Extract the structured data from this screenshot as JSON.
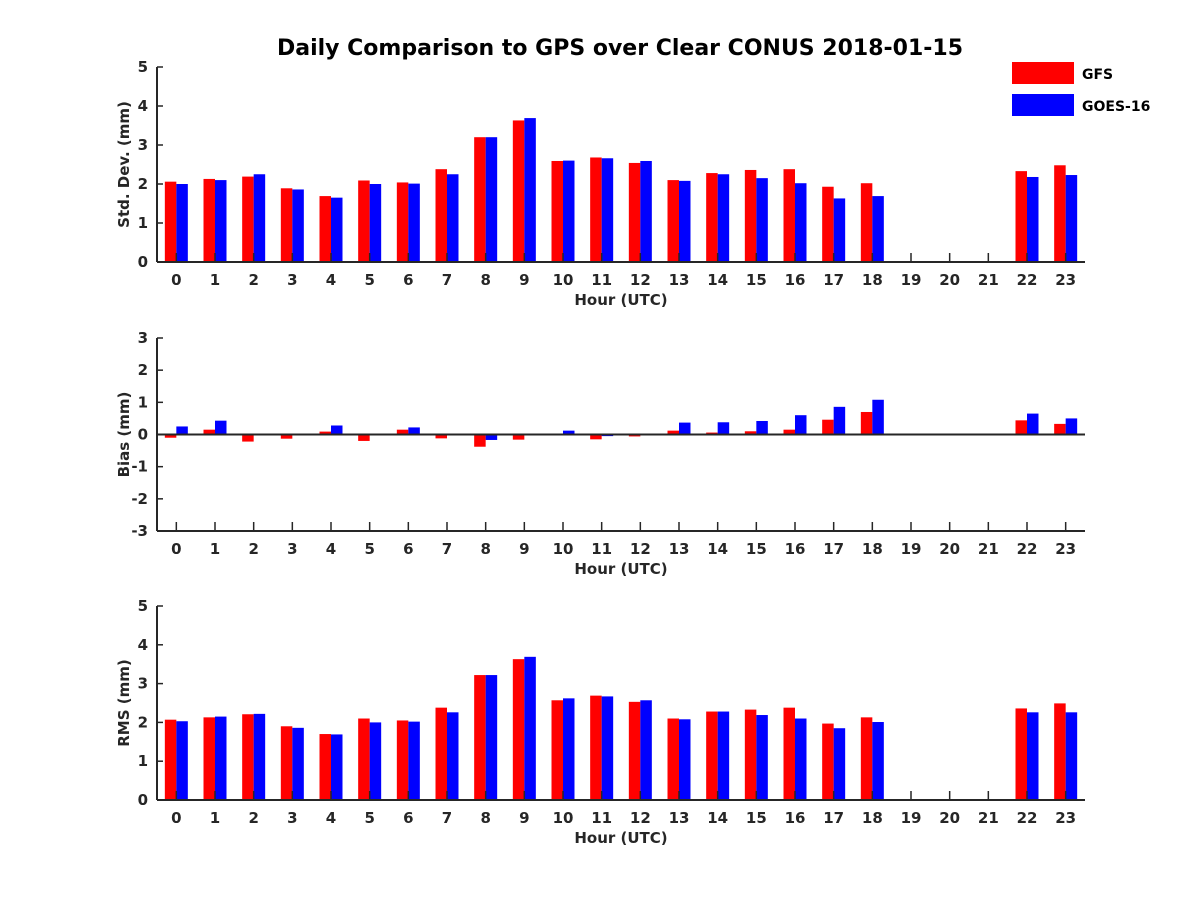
{
  "colors": {
    "gfs": "#ff0000",
    "goes": "#0000ff",
    "axis": "#262626"
  },
  "chart_data": {
    "type": "bar",
    "title": "Daily Comparison to GPS over Clear CONUS 2018-01-15",
    "legend": {
      "position": "top-right",
      "entries": [
        "GFS",
        "GOES-16"
      ]
    },
    "categories": [
      "0",
      "1",
      "2",
      "3",
      "4",
      "5",
      "6",
      "7",
      "8",
      "9",
      "10",
      "11",
      "12",
      "13",
      "14",
      "15",
      "16",
      "17",
      "18",
      "19",
      "20",
      "21",
      "22",
      "23"
    ],
    "panels": [
      {
        "name": "std",
        "xlabel": "Hour (UTC)",
        "ylabel": "Std. Dev. (mm)",
        "ylim": [
          0,
          5
        ],
        "yticks": [
          "0",
          "1",
          "2",
          "3",
          "4",
          "5"
        ],
        "series": [
          {
            "name": "GFS",
            "values": [
              2.06,
              2.13,
              2.19,
              1.89,
              1.69,
              2.09,
              2.04,
              2.38,
              3.2,
              3.63,
              2.59,
              2.68,
              2.54,
              2.1,
              2.28,
              2.36,
              2.38,
              1.93,
              2.02,
              null,
              null,
              null,
              2.33,
              2.48
            ]
          },
          {
            "name": "GOES-16",
            "values": [
              2.0,
              2.1,
              2.25,
              1.86,
              1.65,
              2.0,
              2.01,
              2.25,
              3.2,
              3.69,
              2.6,
              2.66,
              2.59,
              2.08,
              2.25,
              2.15,
              2.02,
              1.63,
              1.69,
              null,
              null,
              null,
              2.18,
              2.23
            ]
          }
        ]
      },
      {
        "name": "bias",
        "xlabel": "Hour (UTC)",
        "ylabel": "Bias (mm)",
        "ylim": [
          -3,
          3
        ],
        "yticks": [
          "-3",
          "-2",
          "-1",
          "0",
          "1",
          "2",
          "3"
        ],
        "series": [
          {
            "name": "GFS",
            "values": [
              -0.1,
              0.15,
              -0.22,
              -0.13,
              0.09,
              -0.2,
              0.15,
              -0.12,
              -0.38,
              -0.16,
              0.03,
              -0.15,
              -0.06,
              0.12,
              0.06,
              0.1,
              0.15,
              0.46,
              0.7,
              null,
              null,
              null,
              0.44,
              0.33
            ]
          },
          {
            "name": "GOES-16",
            "values": [
              0.25,
              0.43,
              0.0,
              0.03,
              0.28,
              0.0,
              0.22,
              0.0,
              -0.17,
              0.0,
              0.12,
              -0.05,
              0.02,
              0.37,
              0.38,
              0.42,
              0.6,
              0.86,
              1.08,
              null,
              null,
              null,
              0.65,
              0.5
            ]
          }
        ]
      },
      {
        "name": "rms",
        "xlabel": "Hour (UTC)",
        "ylabel": "RMS (mm)",
        "ylim": [
          0,
          5
        ],
        "yticks": [
          "0",
          "1",
          "2",
          "3",
          "4",
          "5"
        ],
        "series": [
          {
            "name": "GFS",
            "values": [
              2.07,
              2.13,
              2.21,
              1.9,
              1.7,
              2.1,
              2.05,
              2.38,
              3.22,
              3.63,
              2.57,
              2.69,
              2.53,
              2.1,
              2.28,
              2.33,
              2.38,
              1.97,
              2.13,
              null,
              null,
              null,
              2.36,
              2.49
            ]
          },
          {
            "name": "GOES-16",
            "values": [
              2.03,
              2.15,
              2.22,
              1.86,
              1.69,
              2.0,
              2.02,
              2.26,
              3.22,
              3.69,
              2.62,
              2.67,
              2.57,
              2.08,
              2.28,
              2.19,
              2.1,
              1.85,
              2.01,
              null,
              null,
              null,
              2.26,
              2.26
            ]
          }
        ]
      }
    ]
  }
}
